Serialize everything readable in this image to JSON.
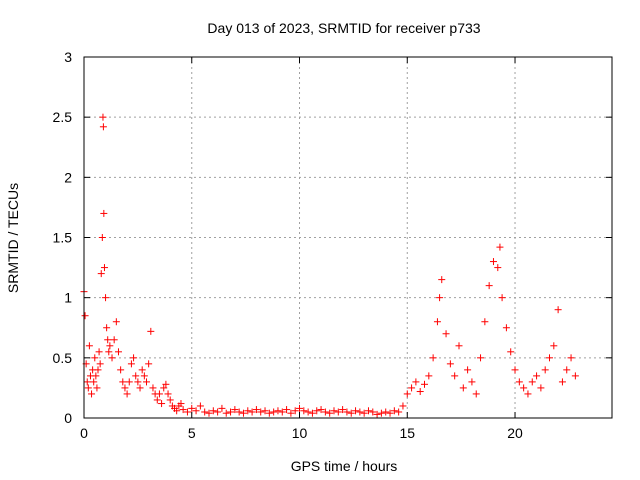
{
  "chart_data": {
    "type": "scatter",
    "title": "Day 013 of 2023, SRMTID for receiver p733",
    "xlabel": "GPS time / hours",
    "ylabel": "SRMTID / TECUs",
    "xlim": [
      0,
      24.5
    ],
    "ylim": [
      0,
      3
    ],
    "grid": true,
    "legend": "none",
    "marker": "+",
    "color": "#ff0000",
    "xticks": [
      0,
      5,
      10,
      15,
      20
    ],
    "xtick_labels": [
      "0",
      "5",
      "10",
      "15",
      "20"
    ],
    "yticks": [
      0,
      0.5,
      1,
      1.5,
      2,
      2.5,
      3
    ],
    "ytick_labels": [
      "0",
      "0.5",
      "1",
      "1.5",
      "2",
      "2.5",
      "3"
    ],
    "series": [
      {
        "name": "SRMTID",
        "x": [
          0.0,
          0.05,
          0.1,
          0.15,
          0.2,
          0.25,
          0.3,
          0.35,
          0.4,
          0.45,
          0.5,
          0.55,
          0.6,
          0.65,
          0.7,
          0.75,
          0.8,
          0.85,
          0.88,
          0.9,
          0.92,
          0.95,
          1.0,
          1.05,
          1.1,
          1.15,
          1.2,
          1.3,
          1.4,
          1.5,
          1.6,
          1.7,
          1.8,
          1.9,
          2.0,
          2.1,
          2.2,
          2.3,
          2.4,
          2.5,
          2.6,
          2.7,
          2.8,
          2.9,
          3.0,
          3.1,
          3.2,
          3.3,
          3.4,
          3.5,
          3.6,
          3.7,
          3.8,
          3.9,
          4.0,
          4.1,
          4.2,
          4.3,
          4.4,
          4.5,
          4.6,
          4.8,
          5.0,
          5.2,
          5.4,
          5.6,
          5.8,
          6.0,
          6.2,
          6.4,
          6.6,
          6.8,
          7.0,
          7.2,
          7.4,
          7.6,
          7.8,
          8.0,
          8.2,
          8.4,
          8.6,
          8.8,
          9.0,
          9.2,
          9.4,
          9.6,
          9.8,
          10.0,
          10.2,
          10.4,
          10.6,
          10.8,
          11.0,
          11.2,
          11.4,
          11.6,
          11.8,
          12.0,
          12.2,
          12.4,
          12.6,
          12.8,
          13.0,
          13.2,
          13.4,
          13.6,
          13.8,
          14.0,
          14.2,
          14.4,
          14.6,
          14.8,
          15.0,
          15.2,
          15.4,
          15.6,
          15.8,
          16.0,
          16.2,
          16.4,
          16.5,
          16.6,
          16.8,
          17.0,
          17.2,
          17.4,
          17.6,
          17.8,
          18.0,
          18.2,
          18.4,
          18.6,
          18.8,
          19.0,
          19.2,
          19.3,
          19.4,
          19.6,
          19.8,
          20.0,
          20.2,
          20.4,
          20.6,
          20.8,
          21.0,
          21.2,
          21.4,
          21.6,
          21.8,
          22.0,
          22.2,
          22.4,
          22.6,
          22.8
        ],
        "y": [
          1.05,
          0.85,
          0.45,
          0.3,
          0.25,
          0.6,
          0.35,
          0.2,
          0.4,
          0.3,
          0.5,
          0.35,
          0.25,
          0.4,
          0.55,
          0.45,
          1.2,
          1.5,
          2.5,
          2.42,
          1.7,
          1.25,
          1.0,
          0.75,
          0.65,
          0.55,
          0.6,
          0.5,
          0.65,
          0.8,
          0.55,
          0.4,
          0.3,
          0.25,
          0.2,
          0.3,
          0.45,
          0.5,
          0.35,
          0.3,
          0.25,
          0.4,
          0.35,
          0.3,
          0.45,
          0.72,
          0.25,
          0.2,
          0.15,
          0.2,
          0.12,
          0.25,
          0.28,
          0.2,
          0.15,
          0.1,
          0.08,
          0.06,
          0.1,
          0.12,
          0.07,
          0.05,
          0.08,
          0.06,
          0.1,
          0.05,
          0.04,
          0.06,
          0.05,
          0.08,
          0.04,
          0.05,
          0.07,
          0.05,
          0.04,
          0.06,
          0.05,
          0.07,
          0.05,
          0.06,
          0.04,
          0.05,
          0.06,
          0.05,
          0.07,
          0.04,
          0.06,
          0.08,
          0.06,
          0.05,
          0.04,
          0.06,
          0.07,
          0.05,
          0.04,
          0.06,
          0.05,
          0.07,
          0.05,
          0.04,
          0.06,
          0.05,
          0.04,
          0.06,
          0.05,
          0.03,
          0.04,
          0.05,
          0.04,
          0.06,
          0.05,
          0.1,
          0.2,
          0.25,
          0.3,
          0.22,
          0.28,
          0.35,
          0.5,
          0.8,
          1.0,
          1.15,
          0.7,
          0.45,
          0.35,
          0.6,
          0.25,
          0.4,
          0.3,
          0.2,
          0.5,
          0.8,
          1.1,
          1.3,
          1.25,
          1.42,
          1.0,
          0.75,
          0.55,
          0.4,
          0.3,
          0.25,
          0.2,
          0.3,
          0.35,
          0.25,
          0.4,
          0.5,
          0.6,
          0.9,
          0.3,
          0.4,
          0.5,
          0.35
        ]
      }
    ]
  }
}
